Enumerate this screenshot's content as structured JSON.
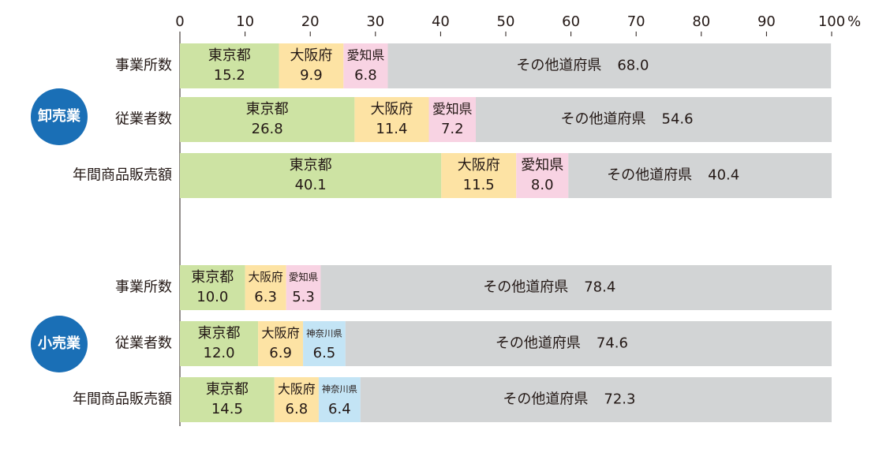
{
  "chart_data": {
    "type": "stacked_bar_groups",
    "xlim": [
      0,
      100
    ],
    "xticks": [
      0,
      10,
      20,
      30,
      40,
      50,
      60,
      70,
      80,
      90,
      100
    ],
    "xunit": "%",
    "groups": [
      {
        "name": "卸売業",
        "rows": [
          {
            "label": "事業所数",
            "segments": [
              {
                "name": "東京都",
                "value": 15.2,
                "value_label": "15.2",
                "color": "#cde3a3"
              },
              {
                "name": "大阪府",
                "value": 9.9,
                "value_label": "9.9",
                "color": "#fde3a4"
              },
              {
                "name": "愛知県",
                "value": 6.8,
                "value_label": "6.8",
                "color": "#f8d3e3"
              },
              {
                "name": "その他道府県",
                "value": 68.0,
                "value_label": "68.0",
                "color": "#d2d4d5"
              }
            ]
          },
          {
            "label": "従業者数",
            "segments": [
              {
                "name": "東京都",
                "value": 26.8,
                "value_label": "26.8",
                "color": "#cde3a3"
              },
              {
                "name": "大阪府",
                "value": 11.4,
                "value_label": "11.4",
                "color": "#fde3a4"
              },
              {
                "name": "愛知県",
                "value": 7.2,
                "value_label": "7.2",
                "color": "#f8d3e3"
              },
              {
                "name": "その他道府県",
                "value": 54.6,
                "value_label": "54.6",
                "color": "#d2d4d5"
              }
            ]
          },
          {
            "label": "年間商品販売額",
            "segments": [
              {
                "name": "東京都",
                "value": 40.1,
                "value_label": "40.1",
                "color": "#cde3a3"
              },
              {
                "name": "大阪府",
                "value": 11.5,
                "value_label": "11.5",
                "color": "#fde3a4"
              },
              {
                "name": "愛知県",
                "value": 8.0,
                "value_label": "8.0",
                "color": "#f8d3e3"
              },
              {
                "name": "その他道府県",
                "value": 40.4,
                "value_label": "40.4",
                "color": "#d2d4d5"
              }
            ]
          }
        ]
      },
      {
        "name": "小売業",
        "rows": [
          {
            "label": "事業所数",
            "segments": [
              {
                "name": "東京都",
                "value": 10.0,
                "value_label": "10.0",
                "color": "#cde3a3"
              },
              {
                "name": "大阪府",
                "value": 6.3,
                "value_label": "6.3",
                "color": "#fde3a4"
              },
              {
                "name": "愛知県",
                "value": 5.3,
                "value_label": "5.3",
                "color": "#f8d3e3"
              },
              {
                "name": "その他道府県",
                "value": 78.4,
                "value_label": "78.4",
                "color": "#d2d4d5"
              }
            ]
          },
          {
            "label": "従業者数",
            "segments": [
              {
                "name": "東京都",
                "value": 12.0,
                "value_label": "12.0",
                "color": "#cde3a3"
              },
              {
                "name": "大阪府",
                "value": 6.9,
                "value_label": "6.9",
                "color": "#fde3a4"
              },
              {
                "name": "神奈川県",
                "value": 6.5,
                "value_label": "6.5",
                "color": "#c3e4f5"
              },
              {
                "name": "その他道府県",
                "value": 74.6,
                "value_label": "74.6",
                "color": "#d2d4d5"
              }
            ]
          },
          {
            "label": "年間商品販売額",
            "segments": [
              {
                "name": "東京都",
                "value": 14.5,
                "value_label": "14.5",
                "color": "#cde3a3"
              },
              {
                "name": "大阪府",
                "value": 6.8,
                "value_label": "6.8",
                "color": "#fde3a4"
              },
              {
                "name": "神奈川県",
                "value": 6.4,
                "value_label": "6.4",
                "color": "#c3e4f5"
              },
              {
                "name": "その他道府県",
                "value": 72.3,
                "value_label": "72.3",
                "color": "#d2d4d5"
              }
            ]
          }
        ]
      }
    ]
  }
}
